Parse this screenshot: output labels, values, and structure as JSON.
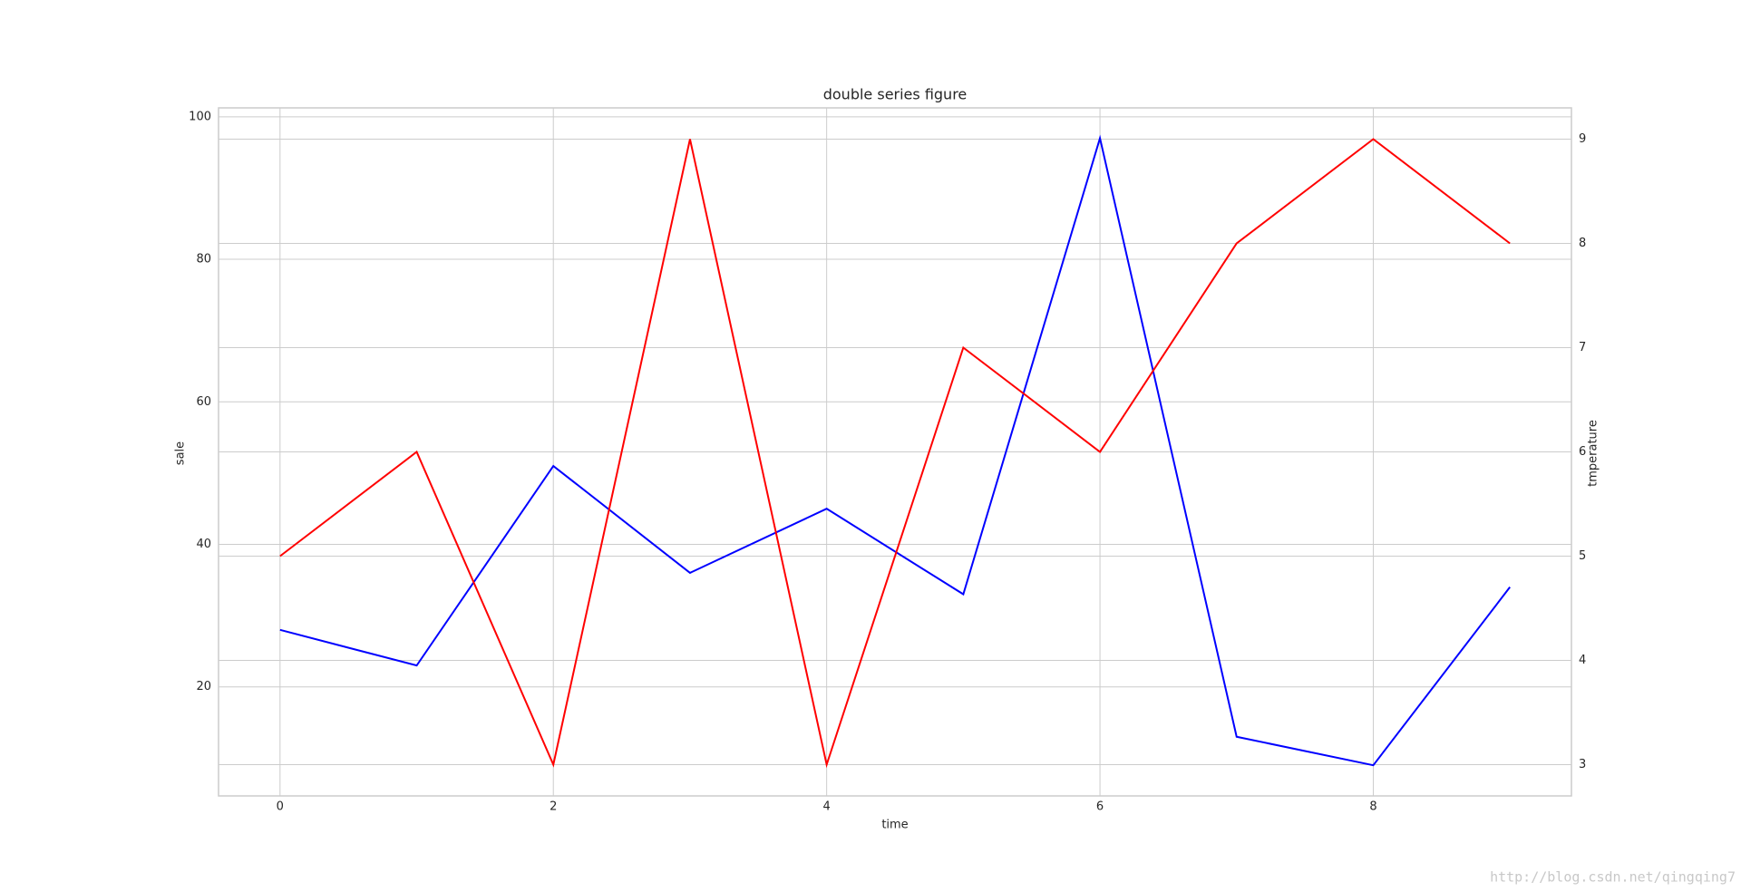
{
  "chart_data": {
    "type": "line",
    "title": "double series figure",
    "x_label": "time",
    "y_label": "sale",
    "y2_label": "tmperature",
    "x": [
      0,
      1,
      2,
      3,
      4,
      5,
      6,
      7,
      8,
      9
    ],
    "series": [
      {
        "name": "sale",
        "color": "#0000ff",
        "values": [
          28,
          23,
          51,
          36,
          45,
          33,
          97,
          13,
          9,
          34
        ]
      },
      {
        "name": "tmperature",
        "color": "#ff0000",
        "axis": "y2",
        "values": [
          5,
          6,
          3,
          9,
          3,
          7,
          6,
          8,
          9,
          8
        ]
      }
    ],
    "xlim": [
      -0.45,
      9.45
    ],
    "xticks": [
      0,
      2,
      4,
      6,
      8
    ],
    "ylim": [
      4.7,
      101.25
    ],
    "yticks": [
      20,
      40,
      60,
      80,
      100
    ],
    "y2lim": [
      2.7,
      9.3
    ],
    "y2ticks": [
      3,
      4,
      5,
      6,
      7,
      8,
      9
    ],
    "grid": true,
    "watermark": "http://blog.csdn.net/qingqing7"
  }
}
